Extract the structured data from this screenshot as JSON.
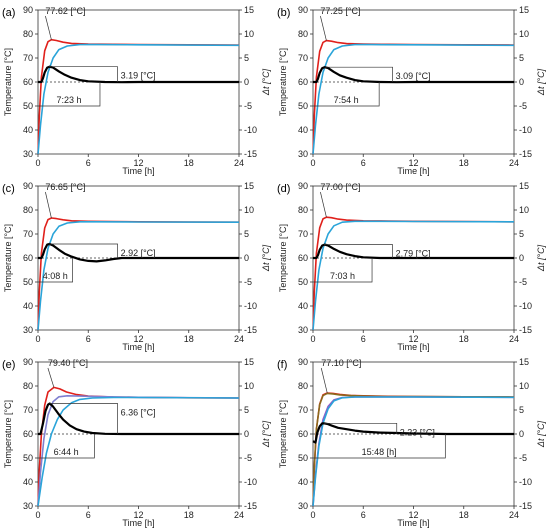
{
  "chart_data": [
    {
      "type": "line",
      "panel_label": "(a)",
      "xlabel": "Time [h]",
      "ylabel": "Temperature [°C]",
      "y2label": "Δt [°C]",
      "xlim": [
        0,
        24
      ],
      "ylim": [
        30,
        90
      ],
      "y2lim": [
        -15,
        15
      ],
      "xticks": [
        "0",
        "6",
        "12",
        "18",
        "24"
      ],
      "yticks": [
        "30",
        "40",
        "50",
        "60",
        "70",
        "80",
        "90"
      ],
      "y2ticks": [
        "-15",
        "-10",
        "-5",
        "0",
        "5",
        "10",
        "15"
      ],
      "peak_label": "77.62 [°C]",
      "dt_label": "3.19 [°C]",
      "time_label": "7:23 h",
      "peak": {
        "t": 1.6,
        "T": 77.62
      },
      "dt_peak": {
        "t": 1.3,
        "dt": 3.19
      },
      "mark_t": 7.4,
      "series": [
        {
          "color": "#e0201b",
          "axis": "left",
          "x": [
            0,
            0.15,
            0.4,
            0.8,
            1.2,
            1.6,
            2.2,
            3,
            4,
            6,
            9,
            12,
            18,
            24
          ],
          "values": [
            30,
            46,
            62,
            73,
            76.8,
            77.62,
            77.3,
            76.6,
            76.1,
            75.8,
            75.7,
            75.6,
            75.5,
            75.4
          ]
        },
        {
          "color": "#2aa4d9",
          "axis": "left",
          "x": [
            0,
            0.3,
            0.7,
            1.2,
            1.8,
            2.5,
            3.5,
            5,
            7,
            12,
            24
          ],
          "values": [
            30,
            42,
            55,
            64,
            70,
            73.5,
            75,
            75.6,
            75.6,
            75.5,
            75.3
          ]
        },
        {
          "color": "#000000",
          "axis": "right",
          "x": [
            0,
            0.4,
            0.6,
            0.8,
            1.1,
            1.4,
            1.8,
            2.5,
            3.2,
            4,
            5,
            6,
            8,
            10,
            12,
            18,
            24
          ],
          "values": [
            0,
            0,
            0.8,
            2,
            3.0,
            3.19,
            3.0,
            2.2,
            1.5,
            0.9,
            0.4,
            0.15,
            0,
            -0.05,
            0,
            0,
            0
          ]
        }
      ]
    },
    {
      "type": "line",
      "panel_label": "(b)",
      "xlabel": "Time [h]",
      "ylabel": "Temperature [°C]",
      "y2label": "Δt [°C]",
      "xlim": [
        0,
        24
      ],
      "ylim": [
        30,
        90
      ],
      "y2lim": [
        -15,
        15
      ],
      "xticks": [
        "0",
        "6",
        "12",
        "18",
        "24"
      ],
      "yticks": [
        "30",
        "40",
        "50",
        "60",
        "70",
        "80",
        "90"
      ],
      "y2ticks": [
        "-15",
        "-10",
        "-5",
        "0",
        "5",
        "10",
        "15"
      ],
      "peak_label": "77.25 [°C]",
      "dt_label": "3.09 [°C]",
      "time_label": "7:54 h",
      "peak": {
        "t": 1.6,
        "T": 77.25
      },
      "dt_peak": {
        "t": 1.4,
        "dt": 3.09
      },
      "mark_t": 7.9,
      "series": [
        {
          "color": "#e0201b",
          "axis": "left",
          "x": [
            0,
            0.15,
            0.4,
            0.8,
            1.2,
            1.6,
            2.2,
            3,
            4,
            6,
            9,
            12,
            18,
            24
          ],
          "values": [
            30,
            46,
            62,
            72.8,
            76.5,
            77.25,
            77,
            76.4,
            76,
            75.8,
            75.7,
            75.6,
            75.5,
            75.4
          ]
        },
        {
          "color": "#2aa4d9",
          "axis": "left",
          "x": [
            0,
            0.3,
            0.7,
            1.2,
            1.8,
            2.5,
            3.5,
            5,
            7,
            12,
            24
          ],
          "values": [
            30,
            42,
            55,
            64,
            70,
            73.5,
            75,
            75.6,
            75.6,
            75.5,
            75.3
          ]
        },
        {
          "color": "#000000",
          "axis": "right",
          "x": [
            0,
            0.4,
            0.6,
            0.8,
            1.1,
            1.4,
            1.8,
            2.5,
            3.2,
            4,
            5,
            6,
            8,
            10,
            12,
            18,
            24
          ],
          "values": [
            0,
            0,
            0.7,
            1.9,
            2.9,
            3.09,
            2.9,
            2.1,
            1.4,
            0.9,
            0.4,
            0.15,
            0,
            -0.05,
            0,
            0,
            0
          ]
        }
      ]
    },
    {
      "type": "line",
      "panel_label": "(c)",
      "xlabel": "Time [h]",
      "ylabel": "Temperature [°C]",
      "y2label": "Δt [°C]",
      "xlim": [
        0,
        24
      ],
      "ylim": [
        30,
        90
      ],
      "y2lim": [
        -15,
        15
      ],
      "xticks": [
        "0",
        "6",
        "12",
        "18",
        "24"
      ],
      "yticks": [
        "30",
        "40",
        "50",
        "60",
        "70",
        "80",
        "90"
      ],
      "y2ticks": [
        "-15",
        "-10",
        "-5",
        "0",
        "5",
        "10",
        "15"
      ],
      "peak_label": "76.65 [°C]",
      "dt_label": "2.92 [°C]",
      "time_label": "4:08 h",
      "peak": {
        "t": 1.6,
        "T": 76.65
      },
      "dt_peak": {
        "t": 1.3,
        "dt": 2.92
      },
      "mark_t": 4.13,
      "series": [
        {
          "color": "#e0201b",
          "axis": "left",
          "x": [
            0,
            0.15,
            0.4,
            0.8,
            1.2,
            1.6,
            2.2,
            3,
            4,
            6,
            9,
            12,
            18,
            24
          ],
          "values": [
            30,
            46,
            62,
            72.5,
            76,
            76.65,
            76.4,
            75.9,
            75.5,
            75.3,
            75.2,
            75.1,
            75,
            74.9
          ]
        },
        {
          "color": "#2aa4d9",
          "axis": "left",
          "x": [
            0,
            0.3,
            0.7,
            1.2,
            1.8,
            2.5,
            3.5,
            5,
            7,
            12,
            24
          ],
          "values": [
            30,
            42,
            55,
            64,
            70,
            73.2,
            74.6,
            75.1,
            75.1,
            75,
            74.9
          ]
        },
        {
          "color": "#000000",
          "axis": "right",
          "x": [
            0,
            0.4,
            0.6,
            0.8,
            1.1,
            1.4,
            1.8,
            2.5,
            3.2,
            4,
            5,
            6,
            7,
            8,
            9,
            10,
            12,
            18,
            24
          ],
          "values": [
            0,
            0,
            0.7,
            1.8,
            2.8,
            2.92,
            2.6,
            1.7,
            0.9,
            0.3,
            -0.3,
            -0.6,
            -0.7,
            -0.5,
            -0.2,
            0,
            0,
            0,
            0
          ]
        }
      ]
    },
    {
      "type": "line",
      "panel_label": "(d)",
      "xlabel": "Time [h]",
      "ylabel": "Temperature [°C]",
      "y2label": "Δt [°C]",
      "xlim": [
        0,
        24
      ],
      "ylim": [
        30,
        90
      ],
      "y2lim": [
        -15,
        15
      ],
      "xticks": [
        "0",
        "6",
        "12",
        "18",
        "24"
      ],
      "yticks": [
        "30",
        "40",
        "50",
        "60",
        "70",
        "80",
        "90"
      ],
      "y2ticks": [
        "-15",
        "-10",
        "-5",
        "0",
        "5",
        "10",
        "15"
      ],
      "peak_label": "77.00 [°C]",
      "dt_label": "2.79 [°C]",
      "time_label": "7:03 h",
      "peak": {
        "t": 1.6,
        "T": 77.0
      },
      "dt_peak": {
        "t": 1.3,
        "dt": 2.79
      },
      "mark_t": 7.05,
      "series": [
        {
          "color": "#e0201b",
          "axis": "left",
          "x": [
            0,
            0.15,
            0.4,
            0.8,
            1.2,
            1.6,
            2.2,
            3,
            4,
            6,
            9,
            12,
            18,
            24
          ],
          "values": [
            30,
            46,
            62,
            72.6,
            76.3,
            77.0,
            76.8,
            76.2,
            75.8,
            75.5,
            75.4,
            75.3,
            75.2,
            75.1
          ]
        },
        {
          "color": "#2aa4d9",
          "axis": "left",
          "x": [
            0,
            0.3,
            0.7,
            1.2,
            1.8,
            2.5,
            3.5,
            5,
            7,
            12,
            24
          ],
          "values": [
            30,
            42,
            55,
            64,
            70,
            73.4,
            74.9,
            75.3,
            75.3,
            75.2,
            75.1
          ]
        },
        {
          "color": "#000000",
          "axis": "right",
          "x": [
            0,
            0.4,
            0.6,
            0.8,
            1.1,
            1.4,
            1.8,
            2.5,
            3.2,
            4,
            5,
            6,
            8,
            10,
            12,
            18,
            24
          ],
          "values": [
            0,
            0,
            0.6,
            1.7,
            2.6,
            2.79,
            2.6,
            1.9,
            1.3,
            0.8,
            0.4,
            0.15,
            0,
            0,
            0,
            0,
            0
          ]
        }
      ]
    },
    {
      "type": "line",
      "panel_label": "(e)",
      "xlabel": "Time [h]",
      "ylabel": "Temperature [°C]",
      "y2label": "Δt [°C]",
      "xlim": [
        0,
        24
      ],
      "ylim": [
        30,
        90
      ],
      "y2lim": [
        -15,
        15
      ],
      "xticks": [
        "0",
        "6",
        "12",
        "18",
        "24"
      ],
      "yticks": [
        "30",
        "40",
        "50",
        "60",
        "70",
        "80",
        "90"
      ],
      "y2ticks": [
        "-15",
        "-10",
        "-5",
        "0",
        "5",
        "10",
        "15"
      ],
      "peak_label": "79.40 [°C]",
      "dt_label": "6.36 [°C]",
      "time_label": "6:44 h",
      "peak": {
        "t": 1.9,
        "T": 79.4
      },
      "dt_peak": {
        "t": 1.4,
        "dt": 6.36
      },
      "mark_t": 6.73,
      "series": [
        {
          "color": "#e0201b",
          "axis": "left",
          "x": [
            0,
            0.15,
            0.4,
            0.8,
            1.2,
            1.9,
            2.6,
            3.4,
            4.5,
            6,
            9,
            12,
            18,
            24
          ],
          "values": [
            30,
            45,
            60,
            72,
            77.5,
            79.4,
            78.8,
            77.5,
            76.5,
            75.8,
            75.4,
            75.3,
            75.1,
            75
          ]
        },
        {
          "color": "#7f7fd0",
          "axis": "left",
          "x": [
            0,
            0.3,
            0.7,
            1.2,
            1.8,
            2.5,
            3.5,
            5,
            7,
            12,
            24
          ],
          "values": [
            30,
            44,
            58,
            68,
            73.5,
            75.5,
            75.9,
            75.8,
            75.6,
            75.3,
            75
          ]
        },
        {
          "color": "#2aa4d9",
          "axis": "left",
          "x": [
            0,
            0.5,
            1.0,
            1.6,
            2.3,
            3,
            4,
            5,
            6.5,
            9,
            12,
            24
          ],
          "values": [
            30,
            42,
            52,
            60,
            66,
            70,
            73,
            74.4,
            75,
            75.2,
            75.2,
            75
          ]
        },
        {
          "color": "#000000",
          "axis": "right",
          "x": [
            0,
            0.3,
            0.6,
            0.9,
            1.2,
            1.4,
            1.8,
            2.4,
            3,
            3.8,
            4.6,
            5.5,
            6.5,
            8,
            10,
            12,
            18,
            24
          ],
          "values": [
            0,
            0,
            2.2,
            4.8,
            6.1,
            6.36,
            5.7,
            4.3,
            3.0,
            1.8,
            1.0,
            0.5,
            0.2,
            0.05,
            0,
            0,
            0,
            0
          ]
        }
      ]
    },
    {
      "type": "line",
      "panel_label": "(f)",
      "xlabel": "Time [h]",
      "ylabel": "Temperature [°C]",
      "y2label": "Δt [°C]",
      "xlim": [
        0,
        24
      ],
      "ylim": [
        30,
        90
      ],
      "y2lim": [
        -15,
        15
      ],
      "xticks": [
        "0",
        "6",
        "12",
        "18",
        "24"
      ],
      "yticks": [
        "30",
        "40",
        "50",
        "60",
        "70",
        "80",
        "90"
      ],
      "y2ticks": [
        "-15",
        "-10",
        "-5",
        "0",
        "5",
        "10",
        "15"
      ],
      "peak_label": "77.10 [°C]",
      "dt_label": "2.23 [°C]",
      "time_label": "15:48 [h]",
      "peak": {
        "t": 1.7,
        "T": 77.1
      },
      "dt_peak": {
        "t": 1.3,
        "dt": 2.23
      },
      "mark_t": 15.8,
      "series": [
        {
          "color": "#e0201b",
          "axis": "left",
          "x": [
            0,
            0.15,
            0.4,
            0.8,
            1.2,
            1.7,
            2.4,
            3.2,
            4.5,
            6,
            9,
            12,
            18,
            24
          ],
          "values": [
            30,
            46,
            62,
            72.5,
            76.3,
            77.1,
            76.9,
            76.5,
            76.1,
            75.9,
            75.7,
            75.6,
            75.5,
            75.4
          ]
        },
        {
          "color": "#8a6a1e",
          "axis": "left",
          "x": [
            0,
            0.15,
            0.4,
            0.8,
            1.2,
            1.7,
            2.4,
            3.2,
            4.5,
            6,
            9,
            12,
            18,
            24
          ],
          "values": [
            30,
            46,
            62,
            72.3,
            76,
            76.9,
            76.7,
            76.3,
            76,
            75.8,
            75.6,
            75.6,
            75.5,
            75.4
          ]
        },
        {
          "color": "#8e5cc8",
          "axis": "left",
          "x": [
            0,
            0.3,
            0.7,
            1.2,
            1.8,
            2.5,
            3.5,
            5,
            7,
            12,
            24
          ],
          "values": [
            30,
            43,
            56,
            66,
            71.5,
            74.2,
            75.2,
            75.4,
            75.4,
            75.4,
            75.3
          ]
        },
        {
          "color": "#2aa4d9",
          "axis": "left",
          "x": [
            0,
            0.3,
            0.7,
            1.2,
            1.8,
            2.5,
            3.5,
            5,
            7,
            12,
            24
          ],
          "values": [
            30,
            42,
            55,
            64.5,
            70.5,
            73.8,
            75.1,
            75.4,
            75.4,
            75.4,
            75.3
          ]
        },
        {
          "color": "#000000",
          "axis": "right",
          "x": [
            0,
            0.3,
            0.5,
            0.8,
            1.1,
            1.3,
            1.7,
            2.3,
            3,
            4,
            5,
            6,
            8,
            10,
            12,
            16,
            20,
            24
          ],
          "values": [
            -1.5,
            -1.8,
            0.2,
            1.6,
            2.2,
            2.23,
            2.1,
            1.7,
            1.3,
            1.0,
            0.7,
            0.5,
            0.3,
            0.2,
            0.1,
            0,
            0,
            0
          ]
        }
      ]
    }
  ]
}
